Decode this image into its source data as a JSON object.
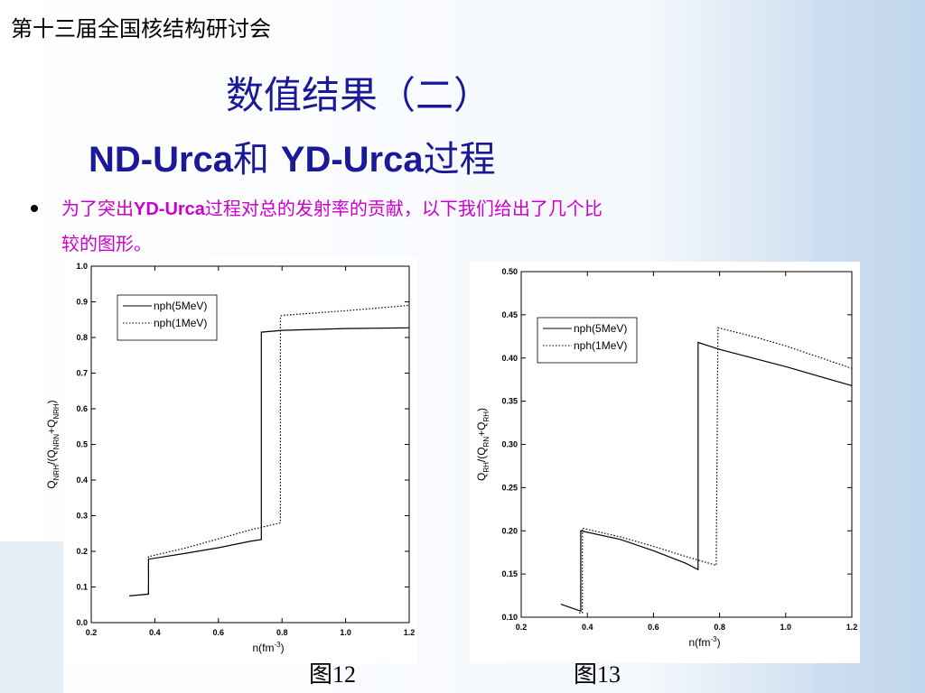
{
  "slide": {
    "header": "第十三届全国核结构研讨会",
    "title": "数值结果（二）",
    "subtitle": [
      "ND-Urca",
      "和 ",
      "YD-Urca",
      "过程"
    ],
    "bullet": [
      "为了突出",
      "YD-Urca",
      "过程对总的发射率的贡献，以下我们给出了几个比",
      "较的图形。"
    ],
    "captions": [
      "图12",
      "图13"
    ]
  },
  "chart_data": [
    {
      "type": "line",
      "xlabel": [
        "n(fm",
        "-3",
        ")"
      ],
      "ylabel": [
        "Q",
        "NRH",
        "/(Q",
        "NRN",
        "+Q",
        "NRH",
        ")"
      ],
      "xlim": [
        0.2,
        1.2
      ],
      "ylim": [
        0.0,
        1.0
      ],
      "xticks": [
        0.2,
        0.4,
        0.6,
        0.8,
        {
          "value": 1.0,
          "label": "1.0"
        },
        1.2
      ],
      "yticks": [
        {
          "value": 0.0,
          "label": "0.0"
        },
        0.1,
        0.2,
        0.3,
        0.4,
        0.5,
        0.6,
        0.7,
        0.8,
        0.9,
        {
          "value": 1.0,
          "label": "1.0"
        }
      ],
      "legend": "upper left",
      "series": [
        {
          "name": "nph(5MeV)",
          "color": "#000000",
          "linestyle": "solid",
          "x": [
            0.32,
            0.38,
            0.38,
            0.5,
            0.6,
            0.7,
            0.735,
            0.735,
            0.8,
            1.0,
            1.2
          ],
          "values": [
            0.075,
            0.08,
            0.178,
            0.195,
            0.21,
            0.228,
            0.233,
            0.815,
            0.82,
            0.825,
            0.827
          ]
        },
        {
          "name": "nph(1MeV)",
          "color": "#000000",
          "linestyle": "dotted",
          "x": [
            0.375,
            0.38,
            0.38,
            0.5,
            0.6,
            0.7,
            0.795,
            0.795,
            0.8,
            1.0,
            1.2
          ],
          "values": [
            0.08,
            0.08,
            0.185,
            0.21,
            0.235,
            0.26,
            0.28,
            0.86,
            0.862,
            0.875,
            0.89
          ]
        }
      ]
    },
    {
      "type": "line",
      "xlabel": [
        "n(fm",
        "-3",
        ")"
      ],
      "ylabel": [
        "Q",
        "RH",
        "/(Q",
        "RN",
        "+Q",
        "RH",
        ")"
      ],
      "xlim": [
        0.2,
        1.2
      ],
      "ylim": [
        0.1,
        0.5
      ],
      "xticks": [
        0.2,
        0.4,
        0.6,
        0.8,
        {
          "value": 1.0,
          "label": "1.0"
        },
        1.2
      ],
      "yticks": [
        {
          "value": 0.1,
          "label": "0.10"
        },
        0.15,
        {
          "value": 0.2,
          "label": "0.20"
        },
        0.25,
        {
          "value": 0.3,
          "label": "0.30"
        },
        0.35,
        {
          "value": 0.4,
          "label": "0.40"
        },
        0.45,
        {
          "value": 0.5,
          "label": "0.50"
        }
      ],
      "legend": "upper left",
      "series": [
        {
          "name": "nph(5MeV)",
          "color": "#000000",
          "linestyle": "solid",
          "x": [
            0.32,
            0.38,
            0.38,
            0.5,
            0.6,
            0.7,
            0.735,
            0.735,
            0.8,
            1.0,
            1.2
          ],
          "values": [
            0.115,
            0.107,
            0.2,
            0.19,
            0.177,
            0.162,
            0.155,
            0.418,
            0.41,
            0.39,
            0.368
          ]
        },
        {
          "name": "nph(1MeV)",
          "color": "#000000",
          "linestyle": "dotted",
          "x": [
            0.375,
            0.385,
            0.385,
            0.5,
            0.6,
            0.7,
            0.79,
            0.795,
            0.9,
            1.0,
            1.2
          ],
          "values": [
            0.105,
            0.105,
            0.203,
            0.193,
            0.182,
            0.17,
            0.16,
            0.435,
            0.425,
            0.414,
            0.388
          ]
        }
      ]
    }
  ]
}
